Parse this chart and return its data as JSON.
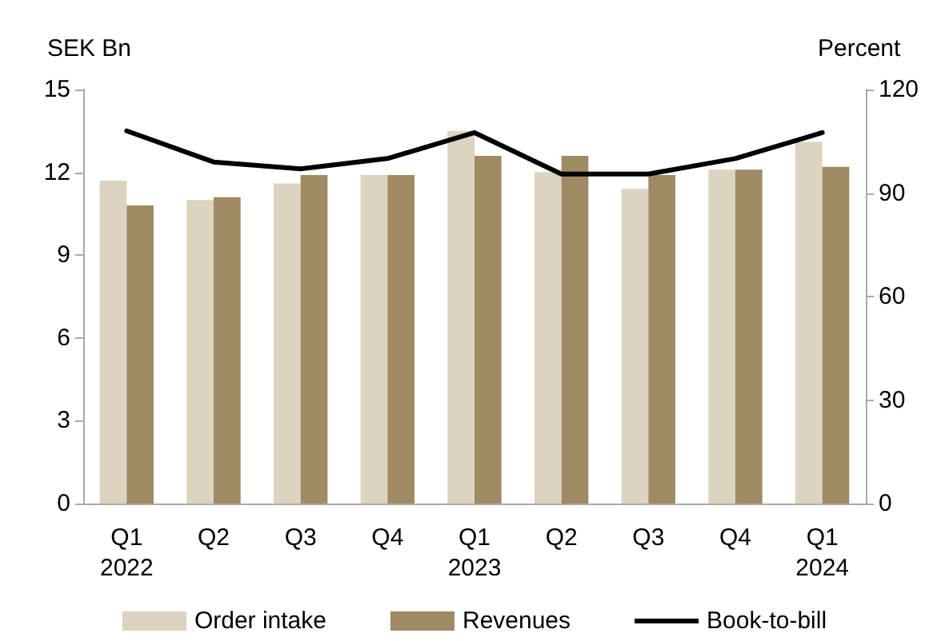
{
  "chart_data": {
    "type": "bar",
    "ylabel": "SEK Bn",
    "y2label": "Percent",
    "categories": [
      "Q1\n2022",
      "Q2",
      "Q3",
      "Q4",
      "Q1\n2023",
      "Q2",
      "Q3",
      "Q4",
      "Q1\n2024"
    ],
    "series": [
      {
        "name": "Order intake",
        "color": "#dcd3c0",
        "values": [
          11.7,
          11.0,
          11.6,
          11.9,
          13.5,
          12.0,
          11.4,
          12.1,
          13.1
        ]
      },
      {
        "name": "Revenues",
        "color": "#a08a63",
        "values": [
          10.8,
          11.1,
          11.9,
          11.9,
          12.6,
          12.6,
          11.9,
          12.1,
          12.2
        ]
      },
      {
        "name": "Book-to-bill",
        "type": "line",
        "axis": "y2",
        "color": "#000000",
        "values": [
          108,
          99,
          97,
          100,
          107.5,
          95.5,
          95.5,
          100,
          107.5
        ]
      }
    ],
    "ylim": [
      0,
      15
    ],
    "yticks": [
      0,
      3,
      6,
      9,
      12,
      15
    ],
    "y2lim": [
      0,
      120
    ],
    "y2ticks": [
      0,
      30,
      60,
      90,
      120
    ],
    "grid": false,
    "legend": "bottom",
    "marker": "none",
    "line_style": "solid"
  }
}
